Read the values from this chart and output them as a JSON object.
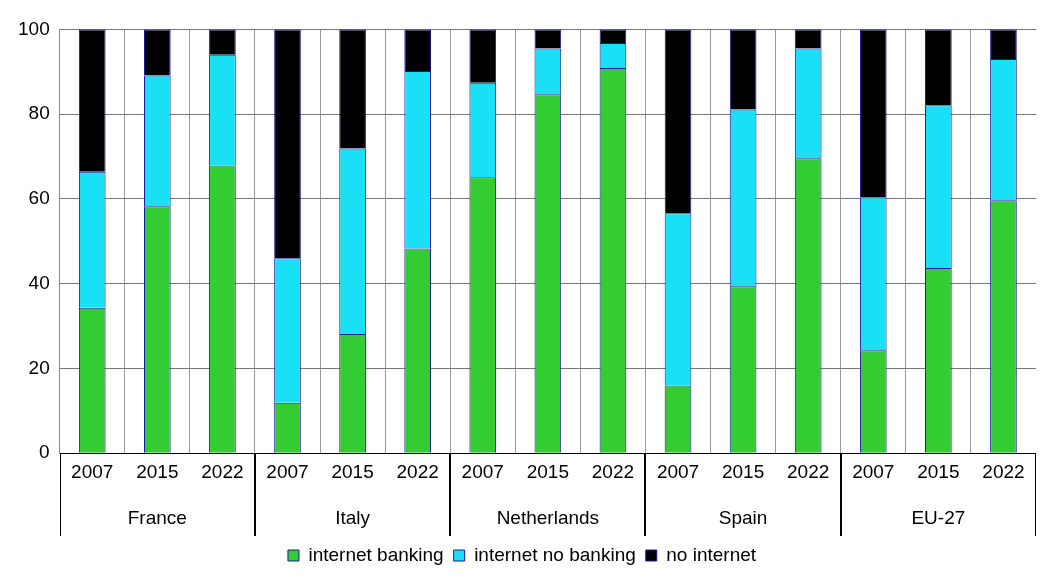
{
  "chart_data": {
    "type": "bar",
    "stacked": true,
    "categories": [
      "2007",
      "2015",
      "2022",
      "2007",
      "2015",
      "2022",
      "2007",
      "2015",
      "2022",
      "2007",
      "2015",
      "2022",
      "2007",
      "2015",
      "2022"
    ],
    "annotations": [
      "France",
      "Italy",
      "Netherlands",
      "Spain",
      "EU-27"
    ],
    "series": [
      {
        "name": "internet banking",
        "color": "#33cc33",
        "values": [
          34.3,
          58.3,
          67.9,
          11.9,
          28.1,
          48.3,
          65.1,
          84.7,
          90.9,
          16.0,
          39.4,
          69.6,
          24.3,
          43.7,
          59.7
        ]
      },
      {
        "name": "internet no banking",
        "color": "#1ae0f5",
        "values": [
          32.1,
          30.8,
          26.1,
          34.1,
          43.8,
          41.9,
          22.3,
          10.8,
          5.9,
          40.6,
          41.7,
          25.9,
          36.1,
          38.4,
          33.3
        ]
      },
      {
        "name": "no internet",
        "color": "#000000",
        "values": [
          33.6,
          10.9,
          6.0,
          54.0,
          28.1,
          9.8,
          12.6,
          4.5,
          3.2,
          43.4,
          18.9,
          4.5,
          39.6,
          17.9,
          7.0
        ]
      }
    ],
    "ylim": [
      0,
      100
    ],
    "yticks": [
      0,
      20,
      40,
      60,
      80,
      100
    ],
    "grid": true,
    "legend": "bottom"
  }
}
